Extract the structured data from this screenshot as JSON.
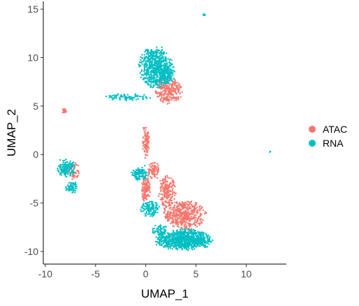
{
  "chart_data": {
    "type": "scatter",
    "xlabel": "UMAP_1",
    "ylabel": "UMAP_2",
    "xlim": [
      -10.2,
      14.0
    ],
    "ylim": [
      -11.3,
      15.8
    ],
    "xticks": [
      -10,
      -5,
      0,
      5,
      10
    ],
    "yticks": [
      -10,
      -5,
      0,
      5,
      10,
      15
    ],
    "grid": false,
    "legend_position": "right",
    "series": [
      {
        "name": "ATAC",
        "color": "#F8766D",
        "clusters": [
          {
            "cx": -8.1,
            "cy": 4.5,
            "rx": 0.25,
            "ry": 0.2,
            "n": 25
          },
          {
            "cx": -7.2,
            "cy": -1.7,
            "rx": 0.7,
            "ry": 0.9,
            "n": 60
          },
          {
            "cx": 2.3,
            "cy": 6.6,
            "rx": 1.2,
            "ry": 1.2,
            "n": 260
          },
          {
            "cx": 0.0,
            "cy": 1.3,
            "rx": 0.35,
            "ry": 1.6,
            "n": 90
          },
          {
            "cx": 0.0,
            "cy": -3.5,
            "rx": 0.45,
            "ry": 1.3,
            "n": 120
          },
          {
            "cx": 0.8,
            "cy": -1.7,
            "rx": 0.55,
            "ry": 0.8,
            "n": 70
          },
          {
            "cx": 2.1,
            "cy": -3.8,
            "rx": 0.8,
            "ry": 1.4,
            "n": 200
          },
          {
            "cx": 3.8,
            "cy": -6.2,
            "rx": 1.9,
            "ry": 1.4,
            "n": 480
          }
        ]
      },
      {
        "name": "RNA",
        "color": "#00BFC4",
        "clusters": [
          {
            "cx": 1.0,
            "cy": 9.0,
            "rx": 1.5,
            "ry": 1.9,
            "n": 650
          },
          {
            "cx": 2.0,
            "cy": 8.2,
            "rx": 0.8,
            "ry": 0.9,
            "n": 120
          },
          {
            "cx": -1.7,
            "cy": 5.9,
            "rx": 2.0,
            "ry": 0.35,
            "n": 80
          },
          {
            "cx": 5.8,
            "cy": 14.4,
            "rx": 0.1,
            "ry": 0.1,
            "n": 10
          },
          {
            "cx": 12.4,
            "cy": 0.3,
            "rx": 0.06,
            "ry": 0.06,
            "n": 3
          },
          {
            "cx": -7.9,
            "cy": -1.4,
            "rx": 0.8,
            "ry": 0.8,
            "n": 160
          },
          {
            "cx": -7.4,
            "cy": -3.4,
            "rx": 0.55,
            "ry": 0.6,
            "n": 70
          },
          {
            "cx": -0.6,
            "cy": -2.0,
            "rx": 0.8,
            "ry": 0.6,
            "n": 110
          },
          {
            "cx": 0.4,
            "cy": -5.6,
            "rx": 0.9,
            "ry": 0.7,
            "n": 120
          },
          {
            "cx": 1.4,
            "cy": -7.8,
            "rx": 0.7,
            "ry": 0.5,
            "n": 60
          },
          {
            "cx": 3.8,
            "cy": -8.8,
            "rx": 2.5,
            "ry": 1.0,
            "n": 850
          }
        ]
      }
    ]
  }
}
